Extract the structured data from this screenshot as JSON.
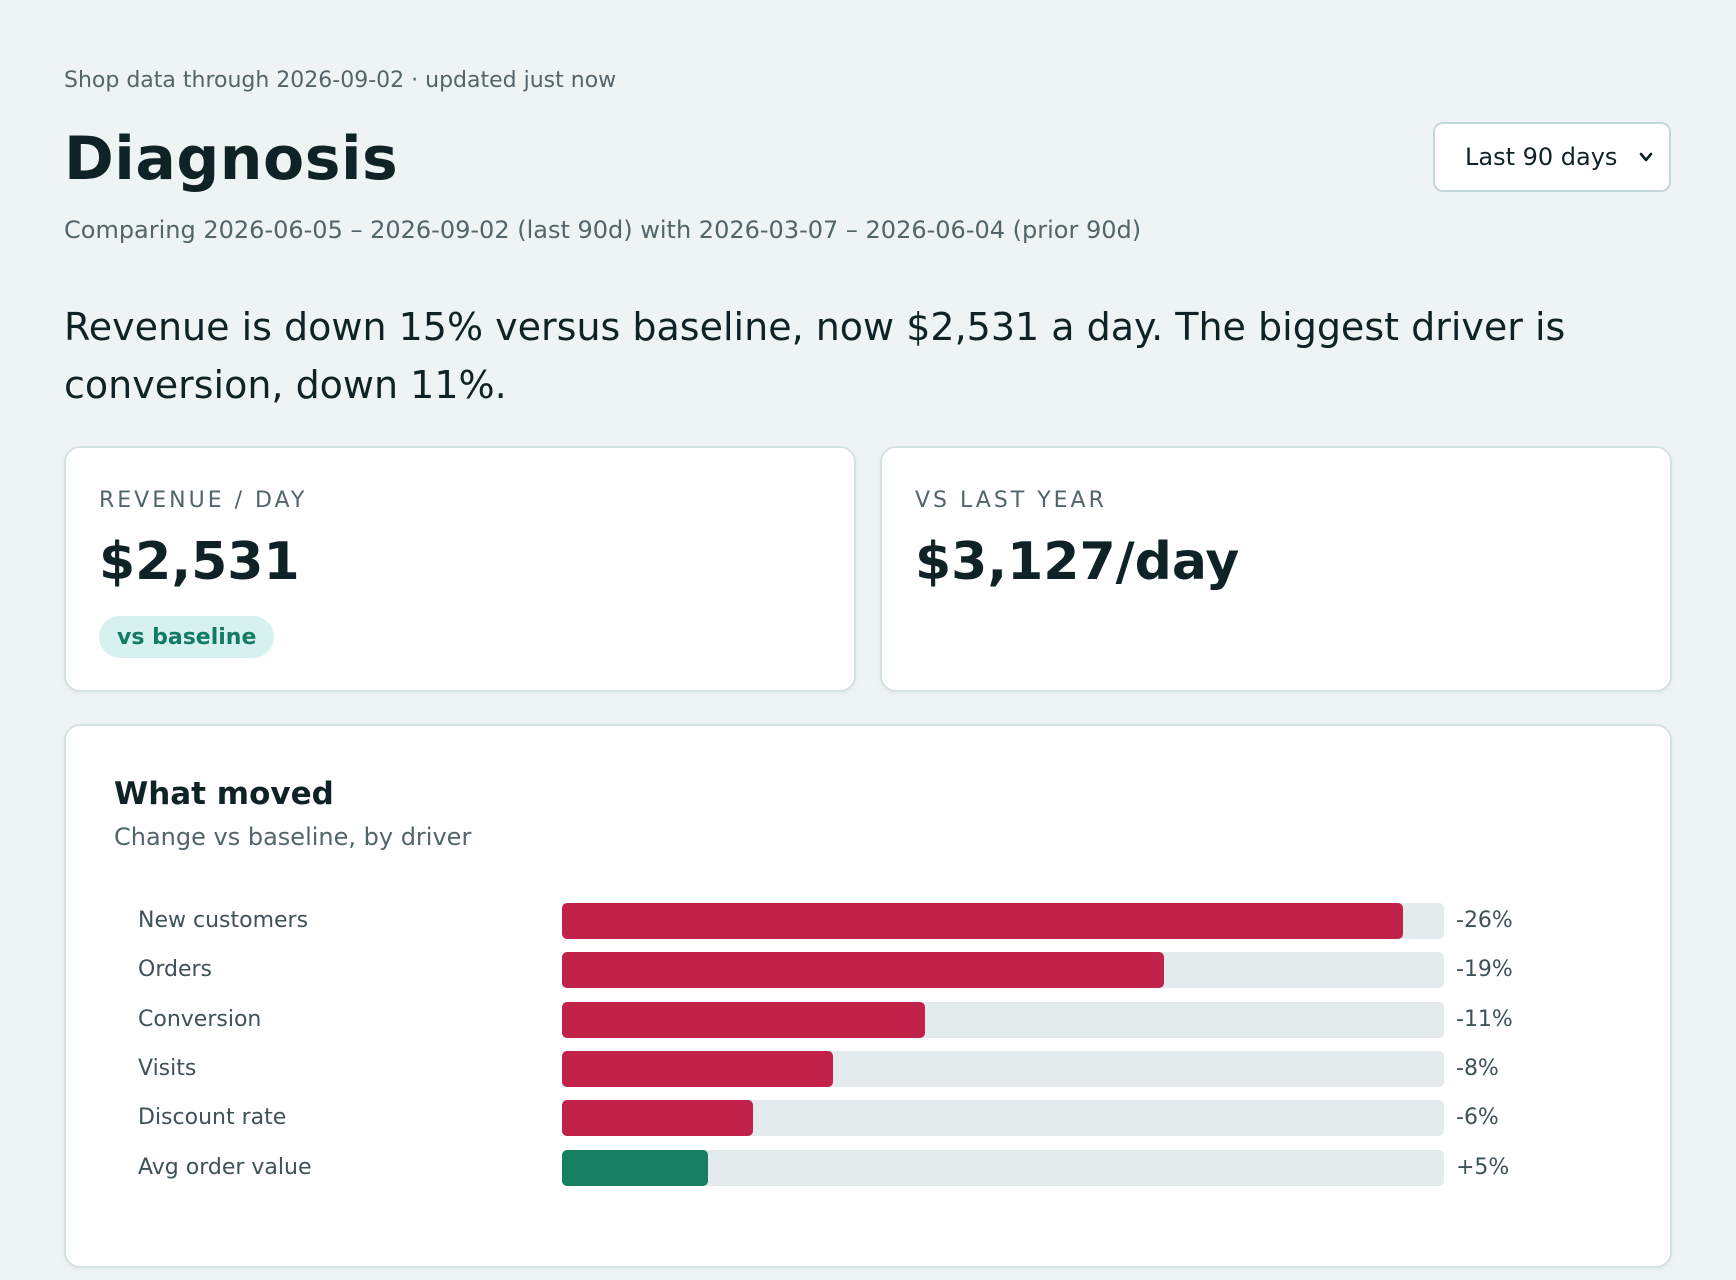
{
  "header": {
    "meta": "Shop data through 2026-09-02 · updated just now",
    "title": "Diagnosis",
    "range_select": "Last 90 days",
    "compare": "Comparing 2026-06-05 – 2026-09-02 (last 90d) with 2026-03-07 – 2026-06-04 (prior 90d)"
  },
  "headline": "Revenue is down 15% versus baseline, now $2,531 a day. The biggest driver is conversion, down 11%.",
  "kpis": {
    "revenue": {
      "label": "REVENUE / DAY",
      "value": "$2,531",
      "badge": "vs baseline"
    },
    "last_year": {
      "label": "VS LAST YEAR",
      "value": "$3,127/day"
    }
  },
  "what_moved": {
    "title": "What moved",
    "subtitle": "Change vs baseline, by driver"
  },
  "colors": {
    "negative": "#c2224a",
    "positive": "#178063",
    "track": "#e3ebec"
  },
  "chart_data": {
    "type": "bar",
    "orientation": "horizontal",
    "categories": [
      "New customers",
      "Orders",
      "Conversion",
      "Visits",
      "Discount rate",
      "Avg order value"
    ],
    "values": [
      -26,
      -19,
      -11,
      -8,
      -6,
      5
    ],
    "value_labels": [
      "-26%",
      "-19%",
      "-11%",
      "-8%",
      "-6%",
      "+5%"
    ],
    "bar_fill_fraction": [
      0.953,
      0.683,
      0.411,
      0.307,
      0.216,
      0.166
    ],
    "grid": false
  }
}
